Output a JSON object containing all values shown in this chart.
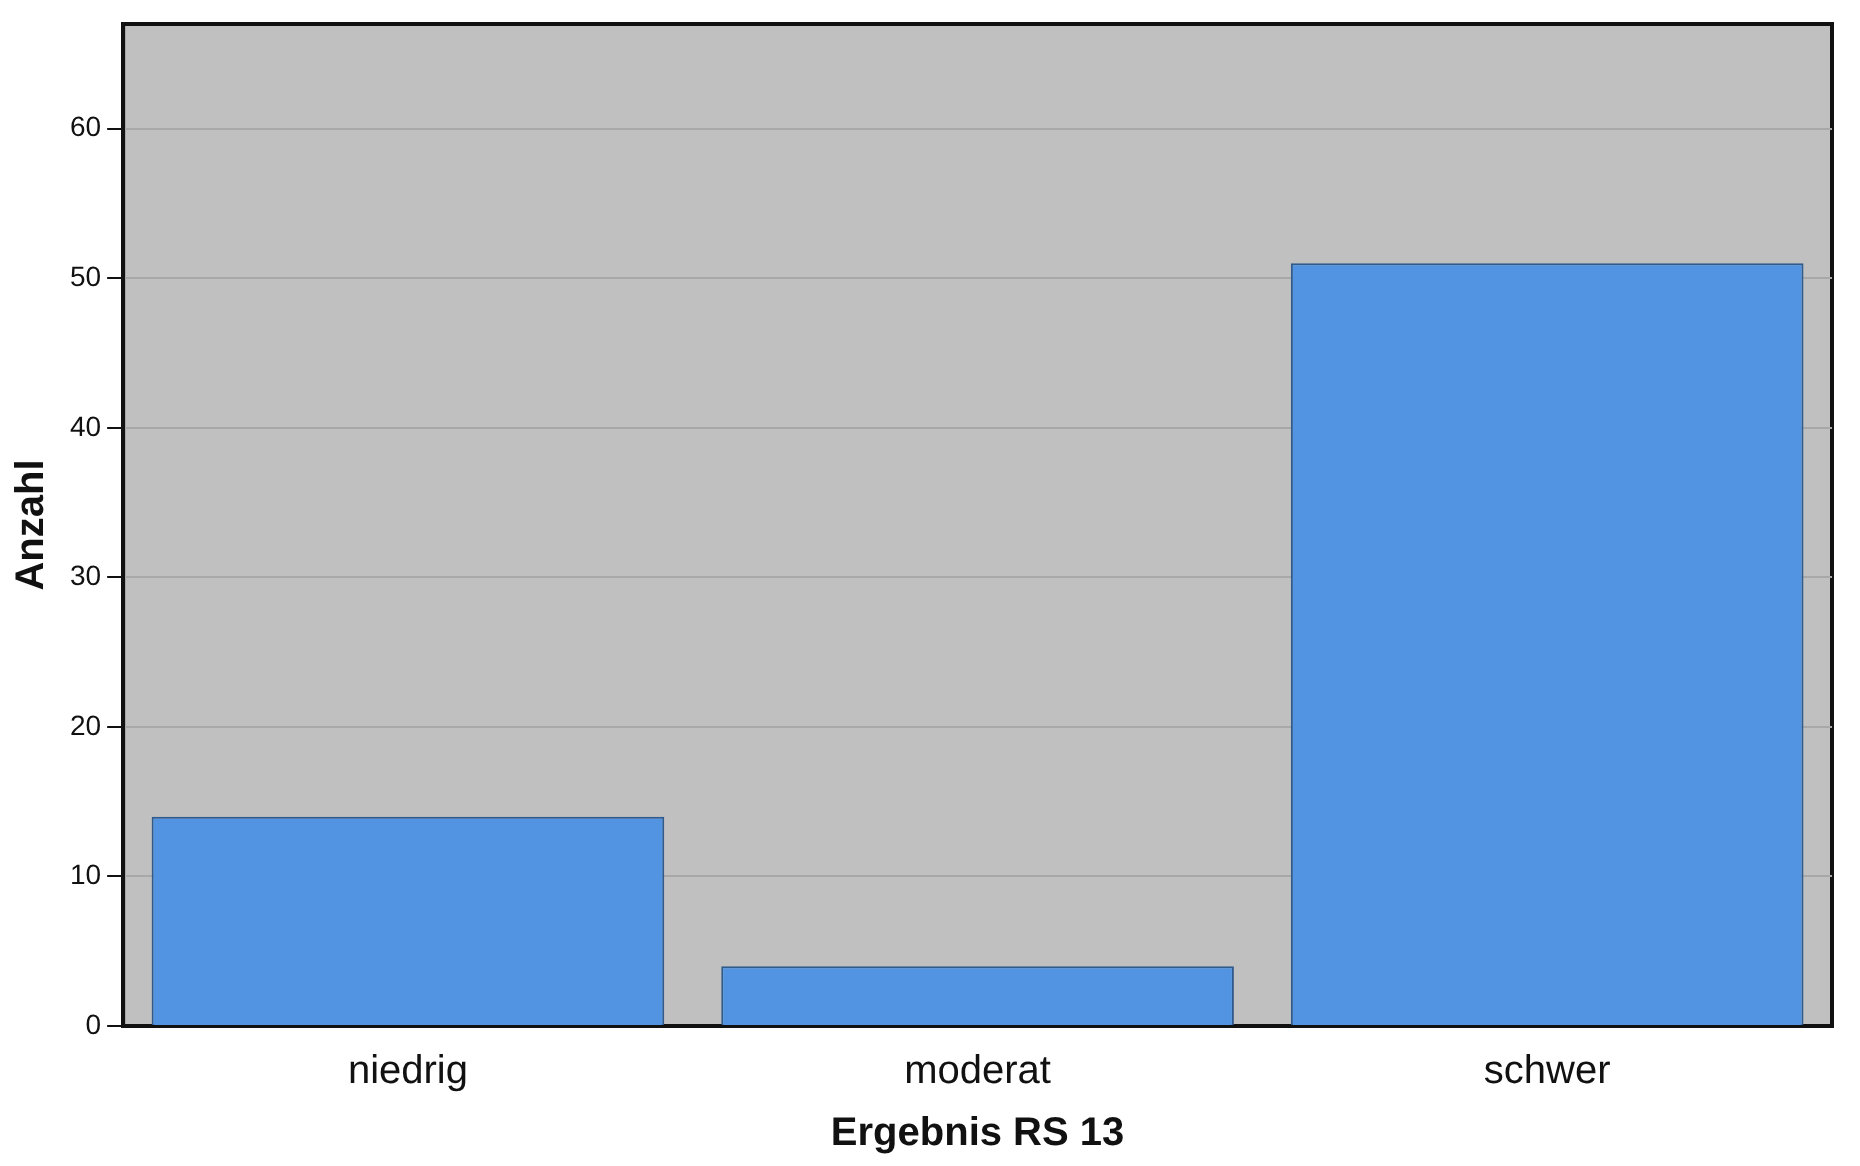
{
  "chart_data": {
    "type": "bar",
    "xlabel": "Ergebnis RS 13",
    "ylabel": "Anzahl",
    "categories": [
      "niedrig",
      "moderat",
      "schwer"
    ],
    "values": [
      14,
      4,
      51
    ],
    "color": "#5294e2",
    "ylim": [
      0,
      67
    ],
    "yticks": [
      0,
      10,
      20,
      30,
      40,
      50,
      60
    ],
    "grid": "y",
    "legend": false
  }
}
